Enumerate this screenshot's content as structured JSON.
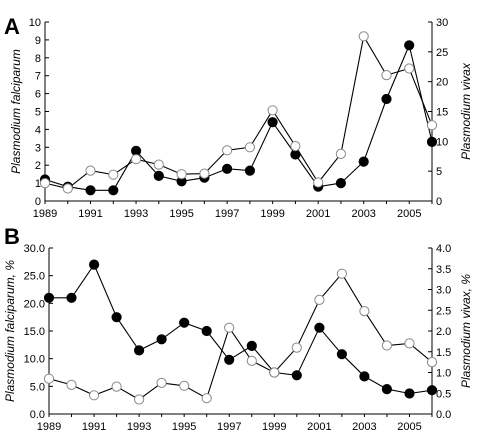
{
  "chart_data": [
    {
      "type": "line",
      "panel_label": "A",
      "x": [
        1989,
        1990,
        1991,
        1992,
        1993,
        1994,
        1995,
        1996,
        1997,
        1998,
        1999,
        2000,
        2001,
        2002,
        2003,
        2004,
        2005,
        2006
      ],
      "xticks": [
        "1989",
        "1991",
        "1993",
        "1995",
        "1997",
        "1999",
        "2001",
        "2003",
        "2005"
      ],
      "ylabel": "Plasmodium falciparum",
      "y2label": "Plasmodium vivax",
      "ylim": [
        0,
        10
      ],
      "y2lim": [
        0,
        30
      ],
      "yticks": [
        "0",
        "1",
        "2",
        "3",
        "4",
        "5",
        "6",
        "7",
        "8",
        "9",
        "10"
      ],
      "y2ticks": [
        "0",
        "5",
        "10",
        "15",
        "20",
        "25",
        "30"
      ],
      "series": [
        {
          "axis": "left",
          "marker": "filled",
          "values": [
            1.2,
            0.8,
            0.6,
            0.6,
            2.8,
            1.4,
            1.1,
            1.3,
            1.8,
            1.7,
            4.4,
            2.6,
            0.8,
            1.0,
            2.2,
            5.7,
            8.7,
            3.3
          ]
        },
        {
          "axis": "right",
          "marker": "open",
          "values": [
            3.0,
            2.1,
            5.1,
            4.4,
            7.0,
            6.1,
            4.5,
            4.6,
            8.5,
            9.0,
            15.2,
            9.2,
            3.1,
            7.9,
            27.6,
            21.1,
            22.2,
            12.7
          ]
        }
      ]
    },
    {
      "type": "line",
      "panel_label": "B",
      "x": [
        1989,
        1990,
        1991,
        1992,
        1993,
        1994,
        1995,
        1996,
        1997,
        1998,
        1999,
        2000,
        2001,
        2002,
        2003,
        2004,
        2005,
        2006
      ],
      "xticks": [
        "1989",
        "1991",
        "1993",
        "1995",
        "1997",
        "1999",
        "2001",
        "2003",
        "2005"
      ],
      "ylabel": "Plasmodium falciparum, %",
      "y2label": "Plasmodium vivax, %",
      "ylim": [
        0,
        30
      ],
      "y2lim": [
        0,
        4
      ],
      "yticks": [
        "0.0",
        "5.0",
        "10.0",
        "15.0",
        "20.0",
        "25.0",
        "30.0"
      ],
      "y2ticks": [
        "0.0",
        "0.5",
        "1.0",
        "1.5",
        "2.0",
        "2.5",
        "3.0",
        "3.5",
        "4.0"
      ],
      "series": [
        {
          "axis": "left",
          "marker": "filled",
          "values": [
            21.0,
            21.0,
            27.0,
            17.5,
            11.5,
            13.5,
            16.5,
            15.0,
            9.8,
            12.3,
            7.5,
            7.0,
            15.6,
            10.8,
            6.8,
            4.5,
            3.7,
            4.3
          ]
        },
        {
          "axis": "right",
          "marker": "open",
          "values": [
            0.85,
            0.7,
            0.45,
            0.66,
            0.35,
            0.75,
            0.68,
            0.38,
            2.08,
            1.28,
            1.0,
            1.6,
            2.75,
            3.38,
            2.48,
            1.65,
            1.7,
            1.25
          ]
        }
      ]
    }
  ]
}
